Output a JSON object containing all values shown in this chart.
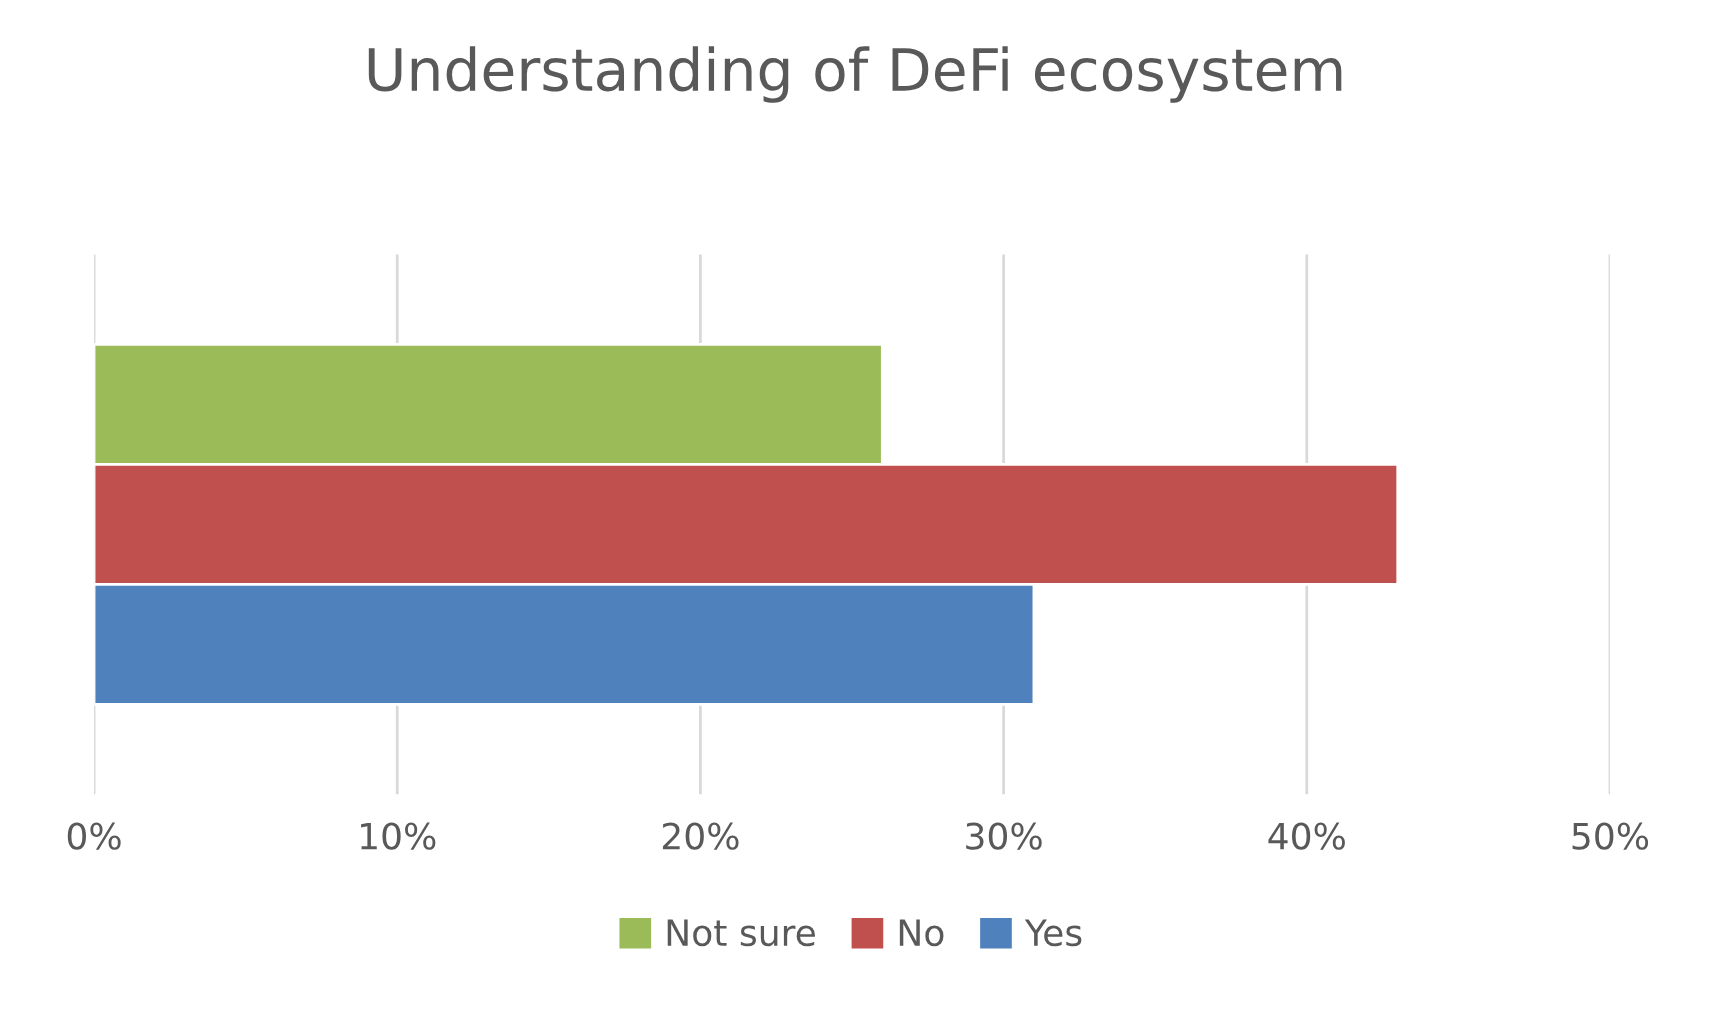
{
  "chart_data": {
    "type": "bar",
    "orientation": "horizontal",
    "title": "Understanding of DeFi ecosystem",
    "categories": [
      null
    ],
    "series": [
      {
        "name": "Not sure",
        "color": "#9bbb59",
        "values": [
          26
        ]
      },
      {
        "name": "No",
        "color": "#c0504d",
        "values": [
          43
        ]
      },
      {
        "name": "Yes",
        "color": "#4f81bd",
        "values": [
          31
        ]
      }
    ],
    "xlim": [
      0,
      50
    ],
    "xticks": [
      {
        "value": 0,
        "label": "0%"
      },
      {
        "value": 10,
        "label": "10%"
      },
      {
        "value": 20,
        "label": "20%"
      },
      {
        "value": 30,
        "label": "30%"
      },
      {
        "value": 40,
        "label": "40%"
      },
      {
        "value": 50,
        "label": "50%"
      }
    ],
    "grid": "x",
    "legend": "bottom"
  }
}
